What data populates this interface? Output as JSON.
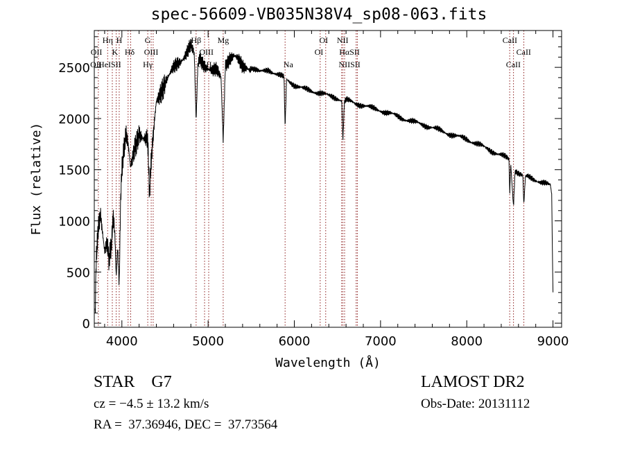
{
  "chart_data": {
    "type": "line",
    "title": "spec-56609-VB035N38V4_sp08-063.fits",
    "xlabel": "Wavelength (Å)",
    "ylabel": "Flux (relative)",
    "xlim": [
      3680,
      9100
    ],
    "ylim": [
      -40,
      2860
    ],
    "xticks": [
      4000,
      5000,
      6000,
      7000,
      8000,
      9000
    ],
    "yticks": [
      0,
      500,
      1000,
      1500,
      2000,
      2500
    ],
    "grid": false,
    "series": [
      {
        "name": "spectrum",
        "color": "#000000",
        "x": [
          3690,
          3700,
          3720,
          3750,
          3780,
          3800,
          3830,
          3850,
          3880,
          3900,
          3920,
          3934,
          3950,
          3969,
          3985,
          4000,
          4030,
          4050,
          4080,
          4100,
          4150,
          4200,
          4250,
          4300,
          4320,
          4340,
          4380,
          4400,
          4450,
          4500,
          4550,
          4600,
          4650,
          4700,
          4750,
          4800,
          4840,
          4861,
          4880,
          4900,
          4950,
          5000,
          5050,
          5100,
          5150,
          5175,
          5200,
          5250,
          5300,
          5350,
          5400,
          5450,
          5500,
          5600,
          5700,
          5800,
          5880,
          5893,
          5910,
          5950,
          6000,
          6100,
          6200,
          6300,
          6400,
          6500,
          6550,
          6563,
          6580,
          6600,
          6700,
          6800,
          6900,
          7000,
          7200,
          7400,
          7500,
          7700,
          7900,
          8000,
          8200,
          8400,
          8490,
          8498,
          8510,
          8542,
          8560,
          8600,
          8650,
          8662,
          8680,
          8700,
          8800,
          8900,
          8970,
          8985,
          9000
        ],
        "y": [
          100,
          600,
          900,
          1050,
          800,
          650,
          750,
          600,
          800,
          1100,
          900,
          500,
          800,
          400,
          1200,
          1500,
          1700,
          1800,
          1650,
          1500,
          1750,
          1900,
          1800,
          1750,
          1200,
          1550,
          2000,
          2200,
          2300,
          2350,
          2400,
          2480,
          2550,
          2600,
          2650,
          2700,
          2600,
          1950,
          2500,
          2600,
          2550,
          2500,
          2450,
          2450,
          2400,
          1800,
          2550,
          2600,
          2600,
          2550,
          2500,
          2520,
          2500,
          2450,
          2480,
          2430,
          2400,
          1900,
          2380,
          2360,
          2330,
          2290,
          2270,
          2250,
          2220,
          2200,
          2180,
          1780,
          2150,
          2180,
          2150,
          2130,
          2100,
          2080,
          2020,
          1960,
          1940,
          1880,
          1820,
          1800,
          1720,
          1640,
          1600,
          1250,
          1560,
          1150,
          1500,
          1470,
          1440,
          1150,
          1420,
          1430,
          1400,
          1370,
          1340,
          1250,
          280
        ]
      }
    ],
    "lines": [
      3727,
      3835,
      3889,
      3934,
      3969,
      4072,
      4102,
      4300,
      4340,
      4363,
      4861,
      4959,
      5007,
      5175,
      5893,
      6300,
      6364,
      6548,
      6563,
      6583,
      6717,
      6731,
      8498,
      8542,
      8662
    ],
    "line_labels": [
      {
        "text": "Hη",
        "at": 3835,
        "row": 1
      },
      {
        "text": "H",
        "at": 3969,
        "row": 1
      },
      {
        "text": "G",
        "at": 4300,
        "row": 1
      },
      {
        "text": "Hβ",
        "at": 4861,
        "row": 1
      },
      {
        "text": "Mg",
        "at": 5175,
        "row": 1
      },
      {
        "text": "OI",
        "at": 6340,
        "row": 1
      },
      {
        "text": "NII",
        "at": 6560,
        "row": 1
      },
      {
        "text": "CaII",
        "at": 8500,
        "row": 1
      },
      {
        "text": "OII",
        "at": 3705,
        "row": 2
      },
      {
        "text": "K",
        "at": 3920,
        "row": 2
      },
      {
        "text": "Hδ",
        "at": 4090,
        "row": 2
      },
      {
        "text": "OIII",
        "at": 4340,
        "row": 2
      },
      {
        "text": "OIII",
        "at": 4980,
        "row": 2
      },
      {
        "text": "OI",
        "at": 6285,
        "row": 2
      },
      {
        "text": "HαSII",
        "at": 6640,
        "row": 2
      },
      {
        "text": "CaII",
        "at": 8660,
        "row": 2
      },
      {
        "text": "OII",
        "at": 3700,
        "row": 3
      },
      {
        "text": "HeISII",
        "at": 3860,
        "row": 3
      },
      {
        "text": "Hγ",
        "at": 4300,
        "row": 3
      },
      {
        "text": "OIII",
        "at": 4960,
        "row": 3
      },
      {
        "text": "Na",
        "at": 5930,
        "row": 3
      },
      {
        "text": "NIISII",
        "at": 6640,
        "row": 3
      },
      {
        "text": "CaII",
        "at": 8540,
        "row": 3
      }
    ],
    "line_color": "#8b1a1a"
  },
  "info": {
    "object": "STAR    G7",
    "cz": "cz = −4.5 ± 13.2 km/s",
    "radec": "RA =  37.36946, DEC =  37.73564",
    "survey": "LAMOST DR2",
    "obs_date": "Obs-Date: 20131112"
  }
}
